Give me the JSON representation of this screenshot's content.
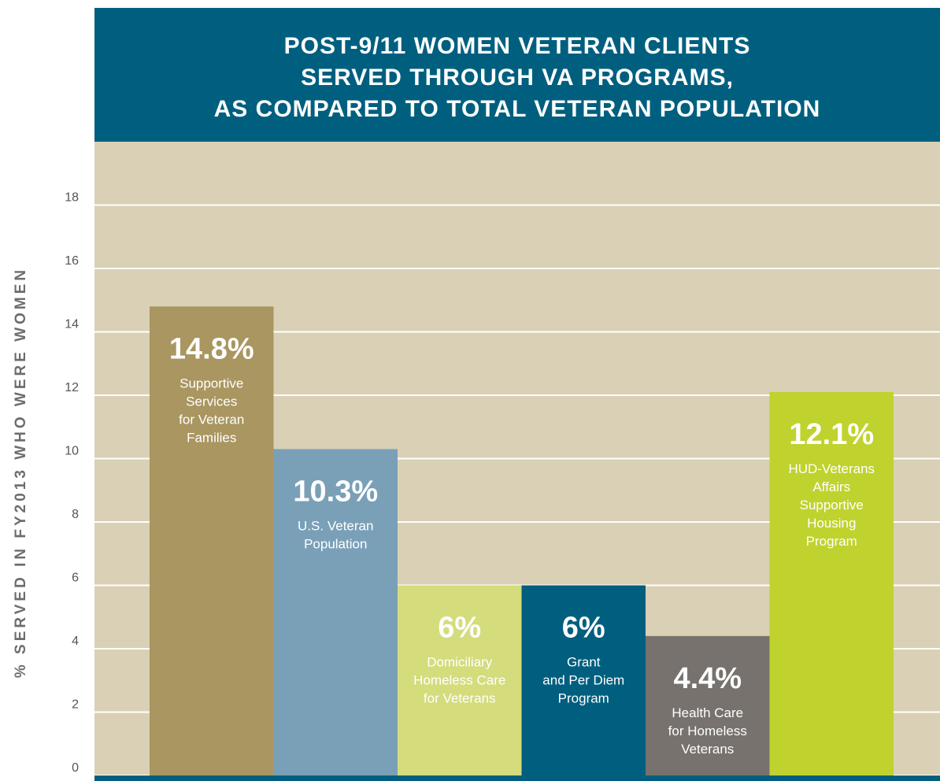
{
  "chart_data": {
    "type": "bar",
    "title": [
      "POST-9/11 WOMEN VETERAN CLIENTS",
      "SERVED THROUGH VA PROGRAMS,",
      "AS COMPARED TO TOTAL VETERAN POPULATION"
    ],
    "ylabel": "% SERVED IN FY2013 WHO WERE WOMEN",
    "categories": [
      [
        "Supportive",
        "Services",
        "for Veteran",
        "Families"
      ],
      [
        "U.S. Veteran",
        "Population"
      ],
      [
        "Domiciliary",
        "Homeless Care",
        "for Veterans"
      ],
      [
        "Grant",
        "and Per Diem",
        "Program"
      ],
      [
        "Health Care",
        "for Homeless",
        "Veterans"
      ],
      [
        "HUD-Veterans",
        "Affairs",
        "Supportive",
        "Housing",
        "Program"
      ]
    ],
    "values": [
      14.8,
      10.3,
      6,
      6,
      4.4,
      12.1
    ],
    "value_labels": [
      "14.8%",
      "10.3%",
      "6%",
      "6%",
      "4.4%",
      "12.1%"
    ],
    "colors": [
      "#a99660",
      "#7aa0b8",
      "#d4dc7c",
      "#005f7f",
      "#77726d",
      "#c0d22e"
    ],
    "ylim": [
      0,
      20
    ],
    "yticks": [
      0,
      2,
      4,
      6,
      8,
      10,
      12,
      14,
      16,
      18
    ],
    "grid": true
  }
}
